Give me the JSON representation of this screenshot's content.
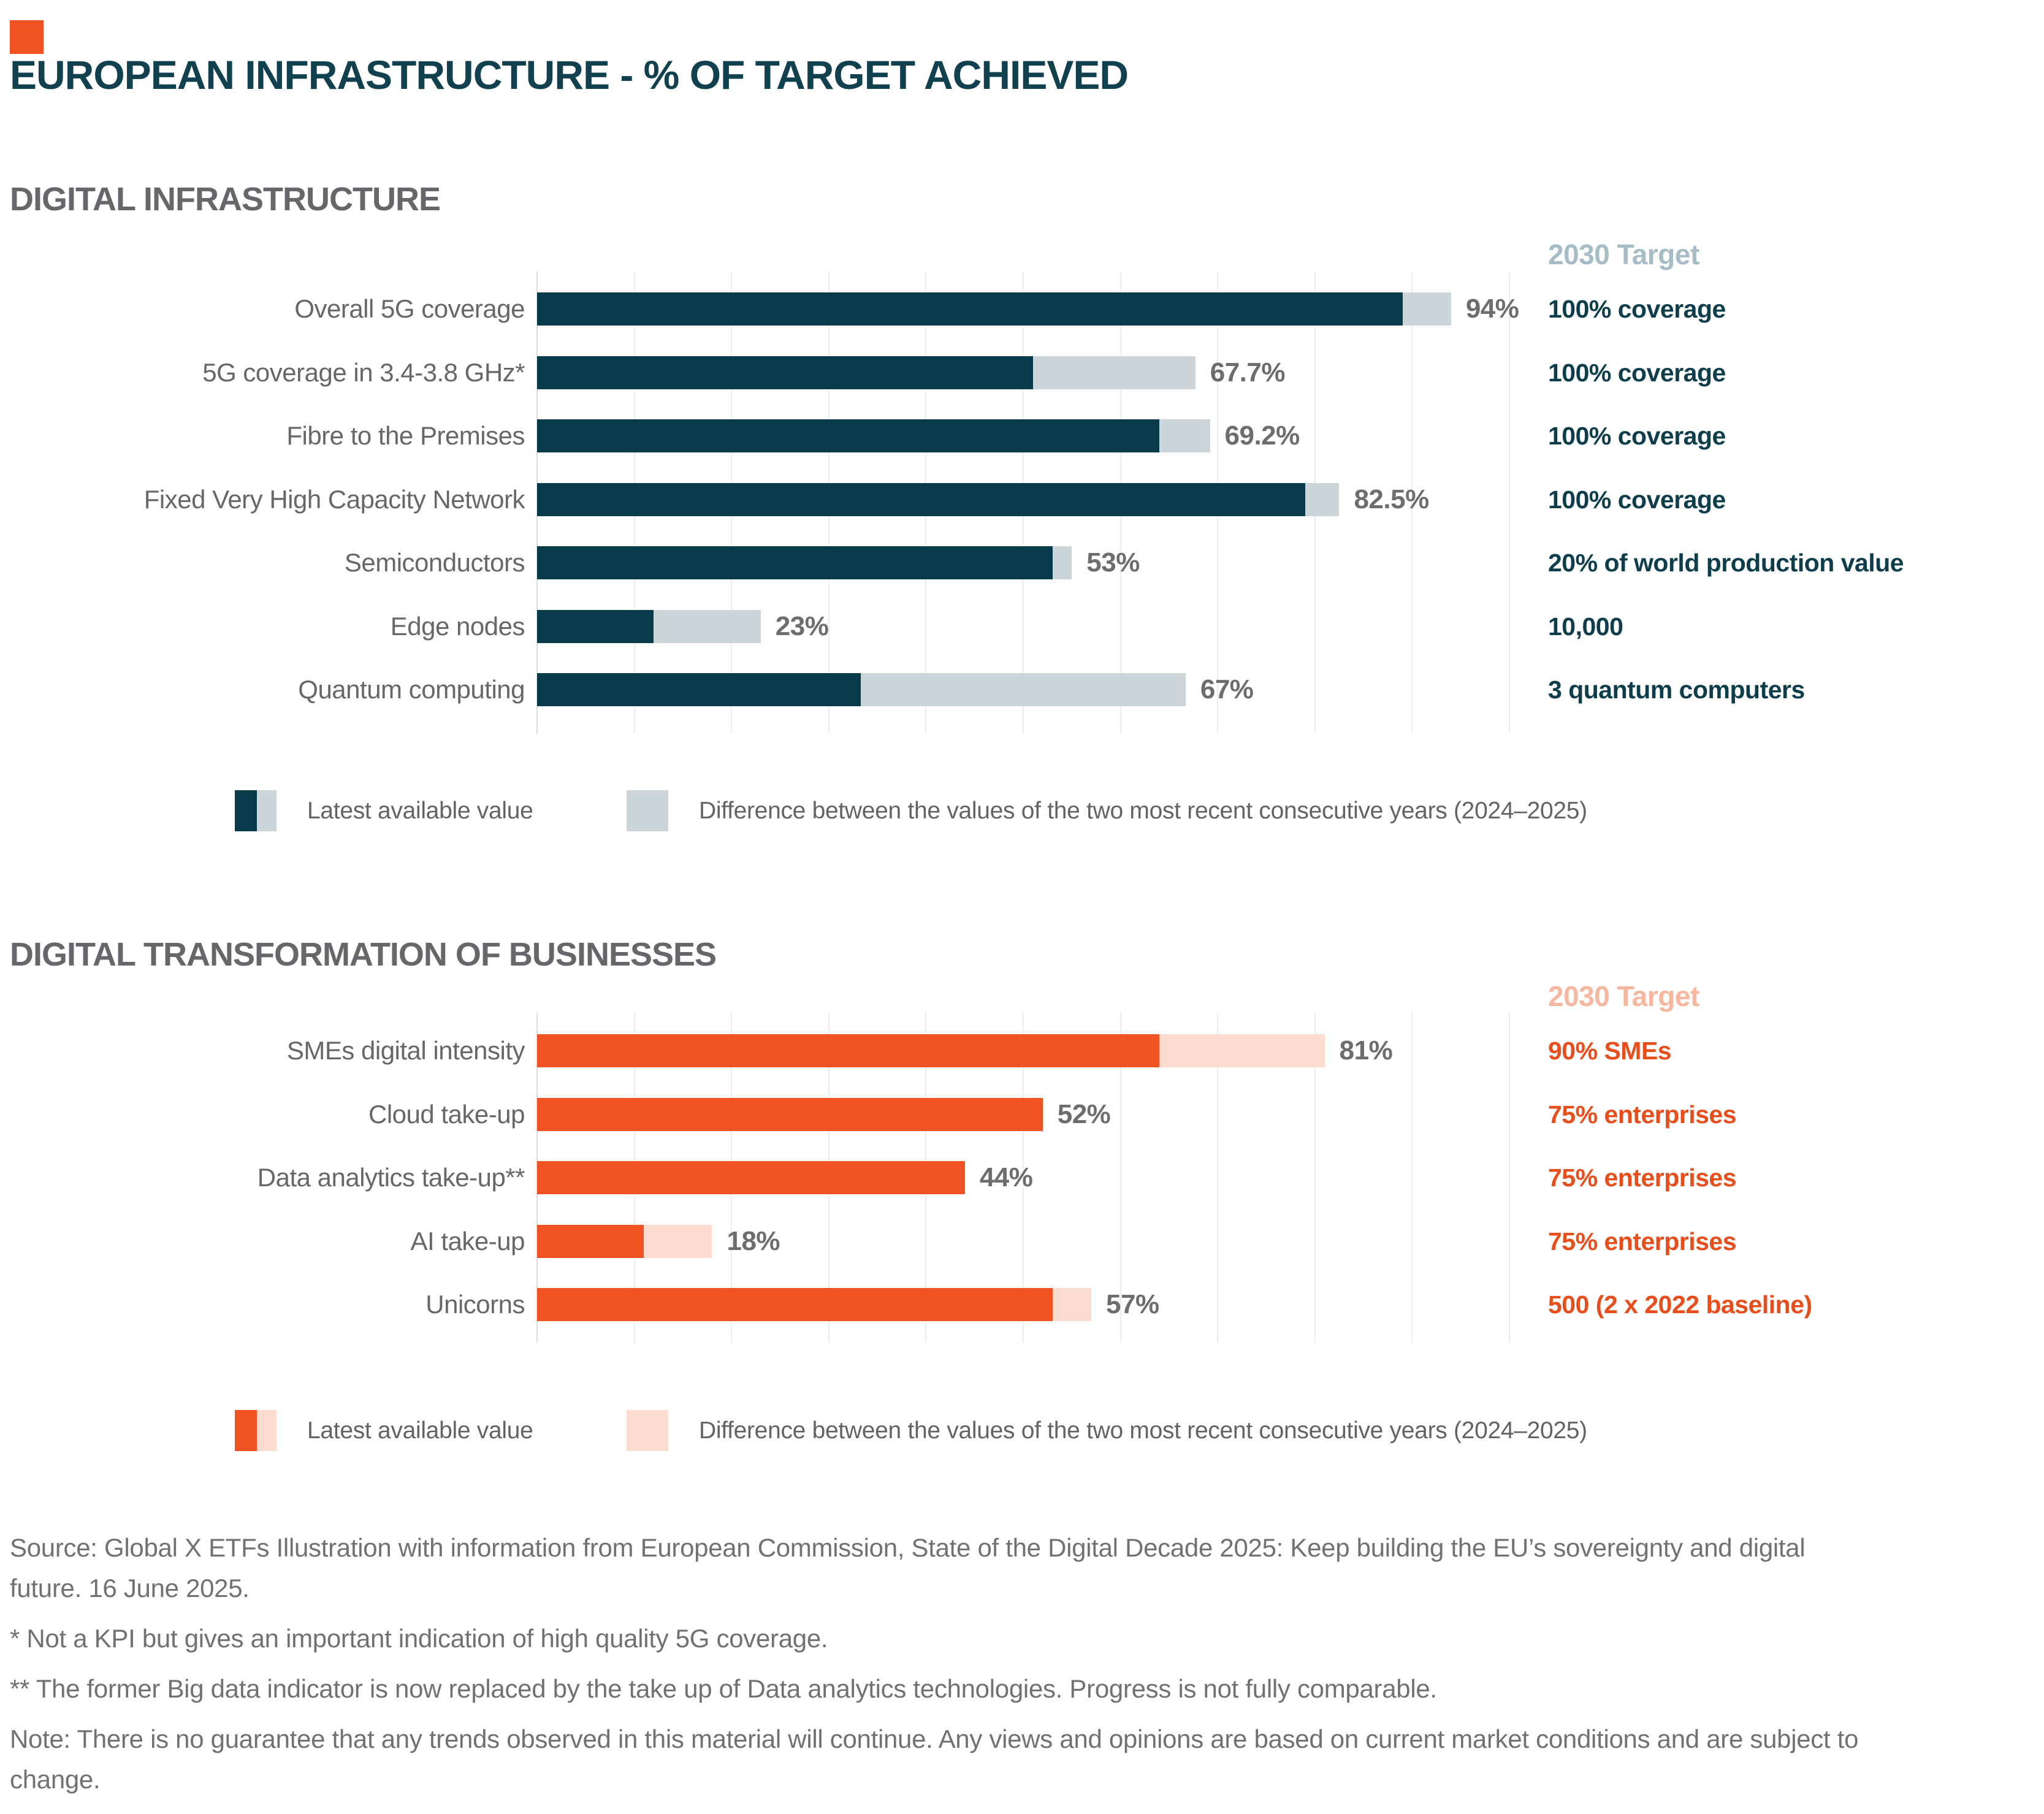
{
  "page": {
    "title": "EUROPEAN INFRASTRUCTURE - % OF TARGET ACHIEVED",
    "accent_color": "#F05323"
  },
  "chart_data": [
    {
      "type": "bar",
      "orientation": "horizontal",
      "section_title": "DIGITAL INFRASTRUCTURE",
      "target_header": "2030 Target",
      "xlim": [
        0,
        100
      ],
      "gridline_step_pct": 10,
      "grid": true,
      "colors": {
        "bar": "#073B49",
        "diff": "#CCD5D9",
        "target_text": "#0E3E4C",
        "target_header": "#A6BDC5"
      },
      "categories": [
        "Overall 5G coverage",
        "5G coverage in 3.4-3.8 GHz*",
        "Fibre to the Premises",
        "Fixed Very High Capacity Network",
        "Semiconductors",
        "Edge nodes",
        "Quantum computing"
      ],
      "series": [
        {
          "name": "Previous year value (2024)",
          "values": [
            89,
            51,
            64,
            79,
            55,
            12,
            33.3
          ]
        },
        {
          "name": "Latest available value (2025)",
          "values": [
            94,
            67.7,
            69.2,
            82.5,
            53,
            23,
            66.7
          ]
        }
      ],
      "rows": [
        {
          "label": "Overall 5G coverage",
          "previous": 89,
          "latest": 94,
          "value_label": "94%",
          "target": "100% coverage"
        },
        {
          "label": "5G coverage in 3.4-3.8 GHz*",
          "previous": 51,
          "latest": 67.7,
          "value_label": "67.7%",
          "target": "100% coverage"
        },
        {
          "label": "Fibre to the Premises",
          "previous": 64,
          "latest": 69.2,
          "value_label": "69.2%",
          "target": "100% coverage"
        },
        {
          "label": "Fixed Very High Capacity Network",
          "previous": 79,
          "latest": 82.5,
          "value_label": "82.5%",
          "target": "100% coverage"
        },
        {
          "label": "Semiconductors",
          "previous": 55,
          "latest": 53,
          "value_label": "53%",
          "target": "20% of world production value"
        },
        {
          "label": "Edge nodes",
          "previous": 12,
          "latest": 23,
          "value_label": "23%",
          "target": "10,000"
        },
        {
          "label": "Quantum computing",
          "previous": 33.3,
          "latest": 66.7,
          "value_label": "67%",
          "target": "3 quantum computers"
        }
      ],
      "legend": [
        {
          "label": "Latest available value"
        },
        {
          "label": "Difference between the values of the two most recent consecutive years (2024–2025)"
        }
      ]
    },
    {
      "type": "bar",
      "orientation": "horizontal",
      "section_title": "DIGITAL TRANSFORMATION OF BUSINESSES",
      "target_header": "2030 Target",
      "xlim": [
        0,
        100
      ],
      "gridline_step_pct": 10,
      "grid": true,
      "colors": {
        "bar": "#F05323",
        "diff": "#FBDAD0",
        "target_text": "#E84E1C",
        "target_header": "#F7B69E"
      },
      "categories": [
        "SMEs digital intensity",
        "Cloud take-up",
        "Data analytics take-up**",
        "AI take-up",
        "Unicorns"
      ],
      "series": [
        {
          "name": "Previous year value (2024)",
          "values": [
            64,
            52,
            44,
            11,
            53
          ]
        },
        {
          "name": "Latest available value (2025)",
          "values": [
            81,
            52,
            44,
            18,
            57
          ]
        }
      ],
      "rows": [
        {
          "label": "SMEs digital intensity",
          "previous": 64,
          "latest": 81,
          "value_label": "81%",
          "target": "90% SMEs"
        },
        {
          "label": "Cloud take-up",
          "previous": 52,
          "latest": 52,
          "value_label": "52%",
          "target": "75% enterprises"
        },
        {
          "label": "Data analytics take-up**",
          "previous": 44,
          "latest": 44,
          "value_label": "44%",
          "target": "75% enterprises"
        },
        {
          "label": "AI take-up",
          "previous": 11,
          "latest": 18,
          "value_label": "18%",
          "target": "75% enterprises"
        },
        {
          "label": "Unicorns",
          "previous": 53,
          "latest": 57,
          "value_label": "57%",
          "target": "500 (2 x 2022 baseline)"
        }
      ],
      "legend": [
        {
          "label": "Latest available value"
        },
        {
          "label": "Difference between the values of the two most recent consecutive years (2024–2025)"
        }
      ]
    }
  ],
  "footnotes": [
    "Source: Global X ETFs Illustration with information from European Commission, State of the Digital Decade 2025: Keep building the EU’s sovereignty and digital future. 16 June 2025.",
    "* Not a KPI but gives an important indication of high quality 5G coverage.",
    "** The former Big data indicator is now replaced by the take up of Data analytics technologies. Progress is not fully comparable.",
    "Note: There is no guarantee that any trends observed in this material will continue. Any views and opinions are based on current market conditions and are subject to change."
  ]
}
